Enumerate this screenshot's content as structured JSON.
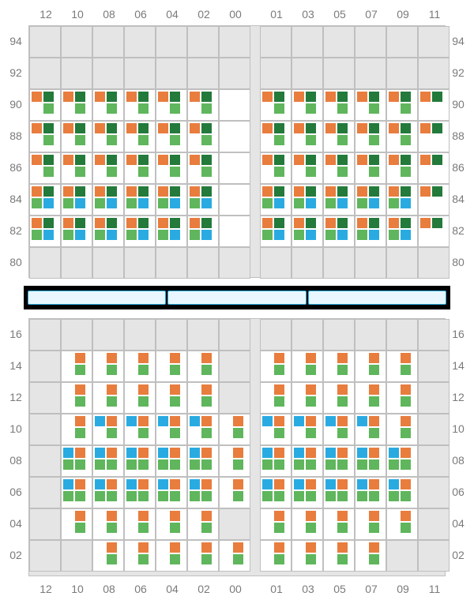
{
  "colors": {
    "orange": "#e87d3e",
    "darkGreen": "#237a3b",
    "green": "#5fb65c",
    "blue": "#29abe2",
    "panelGrey": "#e5e5e5",
    "cellBorder": "#bfbfbf",
    "labelText": "#7a7a7a",
    "midBarBg": "#000000",
    "midSegFill": "#e8f6ff",
    "midSegBorder": "#29abe2",
    "cellWhite": "#ffffff"
  },
  "layout": {
    "pageWidth": 600,
    "pageHeight": 760,
    "cellSize": 40,
    "centerGapWidth": 12,
    "glyphSize": 13,
    "label_fontsize": 14
  },
  "columns": [
    "12",
    "10",
    "08",
    "06",
    "04",
    "02",
    "00",
    "01",
    "03",
    "05",
    "07",
    "09",
    "11"
  ],
  "top": {
    "rowLabels": [
      "94",
      "92",
      "90",
      "88",
      "86",
      "84",
      "82",
      "80"
    ],
    "activeRows": [
      2,
      3,
      4,
      5,
      6
    ],
    "activeCols": [
      0,
      1,
      2,
      3,
      4,
      5,
      6,
      7,
      8,
      9,
      10,
      11,
      12
    ],
    "pattern": {
      "default": [
        "orange",
        "dgreen",
        "none",
        "green"
      ],
      "byRow": {
        "5": {
          "cols": [
            0,
            1,
            2,
            3,
            4,
            5,
            7,
            8,
            9,
            10,
            11,
            12
          ],
          "pat": [
            "orange",
            "dgreen",
            "green",
            "blue"
          ]
        },
        "6": {
          "cols": [
            0,
            1,
            2,
            3,
            4,
            5,
            7,
            8,
            9,
            10,
            11,
            12
          ],
          "pat": [
            "orange",
            "dgreen",
            "green",
            "blue"
          ]
        }
      },
      "col6_all": [
        "none",
        "none",
        "none",
        "none"
      ],
      "col12_rows": {
        "2": [
          "orange",
          "dgreen",
          "none",
          "none"
        ],
        "3": [
          "orange",
          "dgreen",
          "none",
          "none"
        ],
        "4": [
          "orange",
          "dgreen",
          "none",
          "none"
        ],
        "5": [
          "orange",
          "dgreen",
          "none",
          "none"
        ],
        "6": [
          "orange",
          "dgreen",
          "none",
          "none"
        ]
      }
    }
  },
  "bottom": {
    "rowLabels": [
      "16",
      "14",
      "12",
      "10",
      "08",
      "06",
      "04",
      "02"
    ],
    "activeRowsCols": {
      "1": [
        1,
        2,
        3,
        4,
        5,
        7,
        8,
        9,
        10,
        11
      ],
      "2": [
        1,
        2,
        3,
        4,
        5,
        7,
        8,
        9,
        10,
        11
      ],
      "3": [
        1,
        2,
        3,
        4,
        5,
        6,
        7,
        8,
        9,
        10,
        11
      ],
      "4": [
        1,
        2,
        3,
        4,
        5,
        6,
        7,
        8,
        9,
        10,
        11
      ],
      "5": [
        1,
        2,
        3,
        4,
        5,
        6,
        7,
        8,
        9,
        10,
        11
      ],
      "6": [
        1,
        2,
        3,
        4,
        5,
        7,
        8,
        9,
        10,
        11
      ],
      "7": [
        2,
        3,
        4,
        5,
        6,
        7,
        8,
        9,
        10
      ]
    },
    "pattern": {
      "default": [
        "none",
        "orange",
        "none",
        "green"
      ],
      "blueRows": {
        "3": {
          "cols": [
            2,
            3,
            4,
            5,
            7,
            8,
            9,
            10
          ],
          "pat": [
            "none",
            "blue",
            "none",
            "green"
          ]
        },
        "4": {
          "cols": [
            1,
            2,
            3,
            4,
            5,
            7,
            8,
            9,
            10,
            11
          ],
          "pat": [
            "blue",
            "orange",
            "green",
            "green"
          ]
        },
        "5": {
          "cols": [
            1,
            2,
            3,
            4,
            5,
            7,
            8,
            9,
            10,
            11
          ],
          "pat": [
            "blue",
            "orange",
            "green",
            "green"
          ]
        }
      }
    }
  },
  "midbar": {
    "segments": 3
  }
}
